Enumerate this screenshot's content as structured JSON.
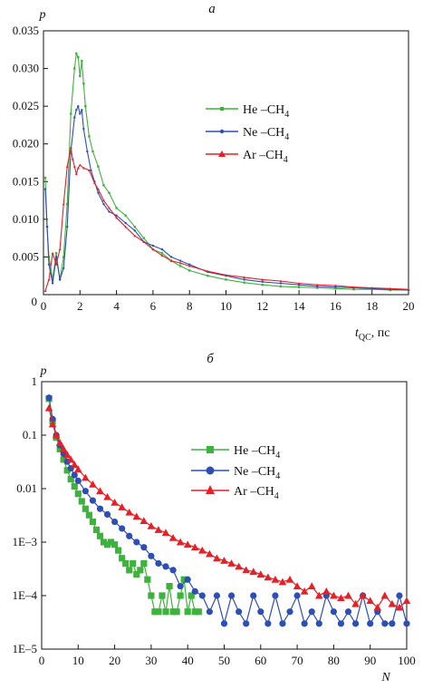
{
  "chart_data": [
    {
      "panel": "a",
      "type": "line",
      "ylabel": "p",
      "xlabel_var": "t",
      "xlabel_sub": "QC",
      "xlabel_unit": ", пс",
      "xlim": [
        0,
        20
      ],
      "ylim": [
        0,
        0.035
      ],
      "xticks": [
        0,
        2,
        4,
        6,
        8,
        10,
        12,
        14,
        16,
        18,
        20
      ],
      "yticks": [
        0.005,
        0.01,
        0.015,
        0.02,
        0.025,
        0.03,
        0.035
      ],
      "ytick_labels": [
        "0.005",
        "0.010",
        "0.015",
        "0.020",
        "0.025",
        "0.030",
        "0.035"
      ],
      "legend_position": "center-right",
      "series": [
        {
          "name": "He –CH",
          "name_sub": "4",
          "color": "#3cb43c",
          "marker": "square",
          "x": [
            0.1,
            0.2,
            0.3,
            0.5,
            0.7,
            0.9,
            1.1,
            1.3,
            1.5,
            1.7,
            1.8,
            1.9,
            2.0,
            2.1,
            2.2,
            2.3,
            2.5,
            2.7,
            3.0,
            3.3,
            3.6,
            4.0,
            4.5,
            5.0,
            5.5,
            6.0,
            6.5,
            7.0,
            7.5,
            8.0,
            9.0,
            10.0,
            11.0,
            12.0,
            13.0,
            14.0,
            15.0,
            16.0,
            17.0,
            18.0,
            19.0,
            20.0
          ],
          "y": [
            0.0155,
            0.009,
            0.005,
            0.002,
            0.0055,
            0.002,
            0.005,
            0.012,
            0.024,
            0.03,
            0.032,
            0.0315,
            0.029,
            0.031,
            0.028,
            0.025,
            0.021,
            0.019,
            0.017,
            0.0145,
            0.0135,
            0.0115,
            0.0105,
            0.009,
            0.0075,
            0.006,
            0.0055,
            0.0045,
            0.0038,
            0.0032,
            0.0025,
            0.002,
            0.0016,
            0.0013,
            0.0011,
            0.001,
            0.0009,
            0.0008,
            0.0007,
            0.0007,
            0.0006,
            0.0006
          ]
        },
        {
          "name": "Ne –CH",
          "name_sub": "4",
          "color": "#2d4fb4",
          "marker": "circle",
          "x": [
            0.1,
            0.2,
            0.3,
            0.5,
            0.7,
            0.9,
            1.1,
            1.3,
            1.5,
            1.7,
            1.8,
            1.9,
            2.0,
            2.1,
            2.2,
            2.4,
            2.6,
            2.8,
            3.0,
            3.3,
            3.6,
            4.0,
            4.5,
            5.0,
            5.5,
            6.0,
            6.5,
            7.0,
            7.5,
            8.0,
            9.0,
            10.0,
            11.0,
            12.0,
            13.0,
            14.0,
            15.0,
            16.0,
            17.0,
            18.0,
            19.0,
            20.0
          ],
          "y": [
            0.014,
            0.009,
            0.004,
            0.0015,
            0.005,
            0.002,
            0.0035,
            0.009,
            0.019,
            0.0235,
            0.0245,
            0.025,
            0.024,
            0.0245,
            0.022,
            0.019,
            0.0165,
            0.015,
            0.0135,
            0.012,
            0.011,
            0.0105,
            0.0095,
            0.0085,
            0.007,
            0.0065,
            0.006,
            0.005,
            0.0045,
            0.004,
            0.003,
            0.0025,
            0.002,
            0.0017,
            0.0015,
            0.0013,
            0.0011,
            0.001,
            0.0009,
            0.0008,
            0.0007,
            0.0006
          ]
        },
        {
          "name": "Ar –CH",
          "name_sub": "4",
          "color": "#e32126",
          "marker": "triangle",
          "x": [
            0.1,
            0.3,
            0.5,
            0.7,
            0.9,
            1.1,
            1.3,
            1.5,
            1.6,
            1.7,
            1.8,
            1.9,
            2.0,
            2.2,
            2.5,
            2.8,
            3.0,
            3.3,
            3.6,
            4.0,
            4.5,
            5.0,
            5.5,
            6.0,
            6.5,
            7.0,
            7.5,
            8.0,
            9.0,
            10.0,
            11.0,
            12.0,
            13.0,
            14.0,
            15.0,
            16.0,
            17.0,
            18.0,
            19.0,
            20.0
          ],
          "y": [
            0.0005,
            0.002,
            0.0055,
            0.004,
            0.006,
            0.012,
            0.017,
            0.0195,
            0.018,
            0.017,
            0.016,
            0.0168,
            0.0172,
            0.0168,
            0.0165,
            0.0148,
            0.014,
            0.0125,
            0.0115,
            0.0102,
            0.009,
            0.0078,
            0.007,
            0.006,
            0.0052,
            0.0045,
            0.0042,
            0.0038,
            0.0031,
            0.0026,
            0.0023,
            0.002,
            0.0018,
            0.0015,
            0.0013,
            0.0012,
            0.001,
            0.0009,
            0.0008,
            0.0007
          ]
        }
      ]
    },
    {
      "panel": "б",
      "type": "line",
      "ylabel": "p",
      "xlabel": "N",
      "yscale": "log",
      "xlim": [
        0,
        100
      ],
      "ylim": [
        1e-05,
        1
      ],
      "xticks": [
        0,
        10,
        20,
        30,
        40,
        50,
        60,
        70,
        80,
        90,
        100
      ],
      "yticks": [
        1e-05,
        0.0001,
        0.001,
        0.01,
        0.1,
        1
      ],
      "ytick_labels": [
        "1E–5",
        "1E–4",
        "1E–3",
        "0.01",
        "0.1",
        "1"
      ],
      "legend_position": "center-right",
      "series": [
        {
          "name": "He –CH",
          "name_sub": "4",
          "color": "#3cb43c",
          "marker": "square",
          "x": [
            2,
            3,
            4,
            5,
            6,
            7,
            8,
            9,
            10,
            11,
            12,
            13,
            14,
            15,
            16,
            17,
            18,
            19,
            20,
            21,
            22,
            23,
            24,
            25,
            26,
            27,
            28,
            29,
            30,
            31,
            32,
            33,
            34,
            35,
            36,
            37,
            38,
            39,
            40,
            41,
            42,
            43
          ],
          "y": [
            0.48,
            0.18,
            0.09,
            0.055,
            0.035,
            0.022,
            0.015,
            0.011,
            0.008,
            0.0058,
            0.0042,
            0.0032,
            0.0024,
            0.0017,
            0.0013,
            0.001,
            0.0009,
            0.001,
            0.0009,
            0.0007,
            0.0005,
            0.0004,
            0.0003,
            0.0004,
            0.00025,
            0.0003,
            0.0004,
            0.0002,
            0.0001,
            5e-05,
            5e-05,
            0.0001,
            5e-05,
            0.00015,
            5e-05,
            5e-05,
            0.0001,
            0.0002,
            5e-05,
            0.0001,
            5e-05,
            5e-05
          ]
        },
        {
          "name": "Ne –CH",
          "name_sub": "4",
          "color": "#2d4fb4",
          "marker": "circle",
          "x": [
            2,
            3,
            4,
            5,
            6,
            7,
            8,
            9,
            10,
            12,
            14,
            16,
            18,
            20,
            22,
            24,
            26,
            28,
            30,
            32,
            34,
            36,
            38,
            40,
            42,
            44,
            46,
            48,
            50,
            52,
            54,
            56,
            58,
            60,
            62,
            64,
            66,
            68,
            70,
            72,
            74,
            76,
            78,
            80,
            82,
            84,
            86,
            88,
            90,
            92,
            94,
            96,
            98,
            100
          ],
          "y": [
            0.5,
            0.2,
            0.1,
            0.065,
            0.045,
            0.032,
            0.024,
            0.018,
            0.014,
            0.009,
            0.006,
            0.0042,
            0.0033,
            0.0024,
            0.0018,
            0.0013,
            0.001,
            0.0008,
            0.00055,
            0.0004,
            0.00035,
            0.0003,
            0.00015,
            0.0002,
            0.00012,
            0.0001,
            5e-05,
            0.0001,
            3e-05,
            0.0001,
            5e-05,
            3e-05,
            0.0001,
            5e-05,
            3e-05,
            0.0001,
            3e-05,
            5e-05,
            0.0001,
            3e-05,
            5e-05,
            3e-05,
            0.0001,
            5e-05,
            3e-05,
            5e-05,
            3e-05,
            0.0001,
            3e-05,
            5e-05,
            3e-05,
            3e-05,
            0.0001,
            3e-05
          ]
        },
        {
          "name": "Ar –CH",
          "name_sub": "4",
          "color": "#e32126",
          "marker": "triangle",
          "x": [
            2,
            3,
            4,
            5,
            6,
            7,
            8,
            9,
            10,
            12,
            14,
            16,
            18,
            20,
            22,
            24,
            26,
            28,
            30,
            32,
            34,
            36,
            38,
            40,
            42,
            44,
            46,
            48,
            50,
            52,
            54,
            56,
            58,
            60,
            62,
            64,
            66,
            68,
            70,
            72,
            74,
            76,
            78,
            80,
            82,
            84,
            86,
            88,
            90,
            92,
            94,
            96,
            98,
            100
          ],
          "y": [
            0.32,
            0.16,
            0.1,
            0.072,
            0.055,
            0.043,
            0.035,
            0.028,
            0.023,
            0.016,
            0.012,
            0.009,
            0.007,
            0.0055,
            0.0045,
            0.0036,
            0.003,
            0.0025,
            0.002,
            0.0017,
            0.0015,
            0.0012,
            0.001,
            0.0009,
            0.0008,
            0.0007,
            0.0006,
            0.0005,
            0.00045,
            0.0004,
            0.00035,
            0.0003,
            0.00028,
            0.00025,
            0.00022,
            0.0002,
            0.00018,
            0.0002,
            0.00015,
            0.00012,
            0.00015,
            0.0001,
            0.00012,
            0.0001,
            9e-05,
            0.0001,
            7e-05,
            0.0001,
            8e-05,
            6e-05,
            0.0001,
            7e-05,
            6e-05,
            8e-05
          ]
        }
      ]
    }
  ]
}
